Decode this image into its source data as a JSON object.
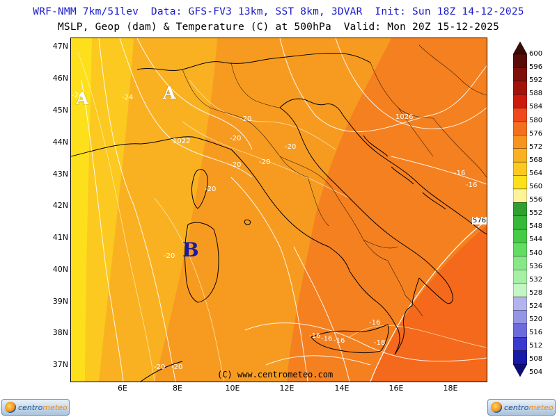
{
  "header": {
    "line1": "WRF-NMM 7km/51lev  Data: GFS-FV3 13km, SST 8km, 3DVAR  Init: Sun 18Z 14-12-2025",
    "line2": "MSLP, Geop (dam) & Temperature (C) at 500hPa  Valid: Mon 20Z 15-12-2025"
  },
  "map": {
    "copyright": "(C) www.centrometeo.com",
    "lat_labels": [
      "47N",
      "46N",
      "45N",
      "44N",
      "43N",
      "42N",
      "41N",
      "40N",
      "39N",
      "38N",
      "37N"
    ],
    "lon_labels": [
      "6E",
      "8E",
      "10E",
      "12E",
      "14E",
      "16E",
      "18E"
    ],
    "pressure_centers": [
      {
        "letter": "A",
        "kind": "high"
      },
      {
        "letter": "A",
        "kind": "high"
      },
      {
        "letter": "B",
        "kind": "low"
      }
    ],
    "isobar_labels": [
      "1026",
      "1022"
    ],
    "geopotential_label": "576",
    "temperature_labels": [
      "-24",
      "-24",
      "-20",
      "-20",
      "-20",
      "-20",
      "-20",
      "-20",
      "-20",
      "-16",
      "-16",
      "-16",
      "-16",
      "-16",
      "-16",
      "-18",
      "-20",
      "-20"
    ]
  },
  "colorbar": {
    "unit": "dam",
    "levels": [
      "600",
      "596",
      "592",
      "588",
      "584",
      "580",
      "576",
      "572",
      "568",
      "564",
      "560",
      "556",
      "552",
      "548",
      "544",
      "540",
      "536",
      "532",
      "528",
      "524",
      "520",
      "516",
      "512",
      "508",
      "504"
    ],
    "colors": [
      "#3a0a05",
      "#5a0d08",
      "#7e1009",
      "#a3120a",
      "#cc1a0d",
      "#f0481c",
      "#f5701e",
      "#f79420",
      "#f9b122",
      "#fbc91f",
      "#fde01b",
      "#fff39a",
      "#2fa02f",
      "#38b838",
      "#44cc44",
      "#62dc62",
      "#86e886",
      "#a6f0a6",
      "#c4f5c4",
      "#b3b3ee",
      "#9595e6",
      "#6b6bdc",
      "#3a3ace",
      "#1a1aa8",
      "#0d0d7a"
    ]
  },
  "logos": {
    "left": {
      "text_a": "centro",
      "text_b": "meteo"
    },
    "right": {
      "text_a": "centro",
      "text_b": "meteo"
    }
  }
}
